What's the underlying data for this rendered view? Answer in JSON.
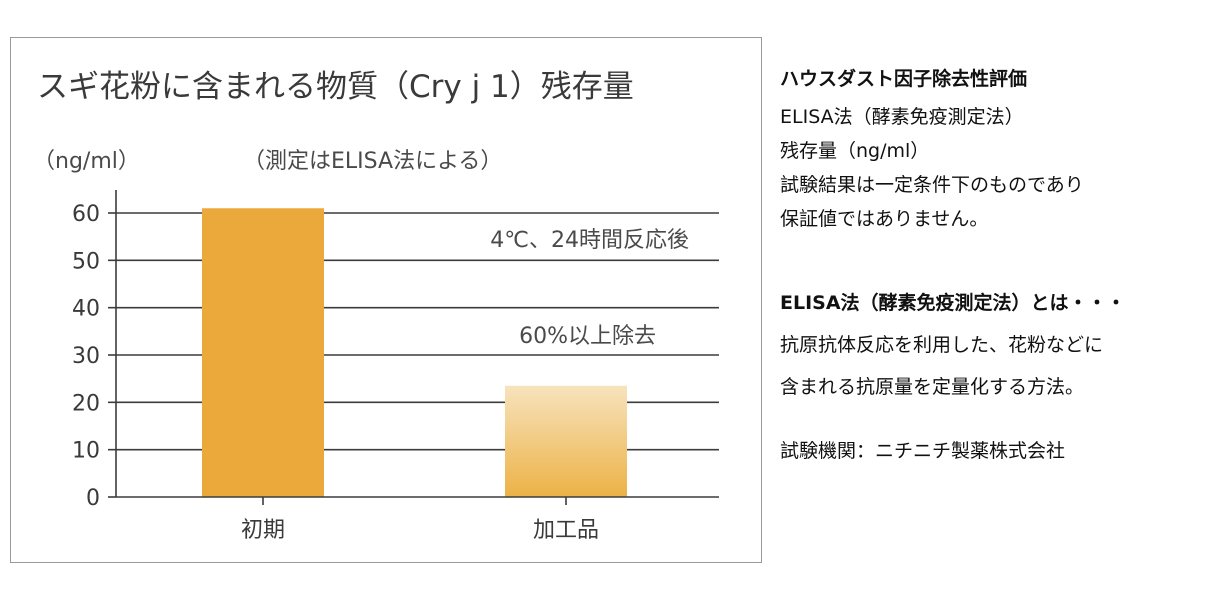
{
  "chart_data": {
    "type": "bar",
    "title": "スギ花粉に含まれる物質（Cry j 1）残存量",
    "unit_label": "（ng/ml）",
    "subtitle": "（測定はELISA法による）",
    "categories": [
      "初期",
      "加工品"
    ],
    "values": [
      61,
      23.5
    ],
    "ylim": [
      0,
      60
    ],
    "yticks": [
      "0",
      "10",
      "20",
      "30",
      "40",
      "50",
      "60"
    ],
    "annotations": [
      "4℃、24時間反応後",
      "60%以上除去"
    ],
    "grid": true,
    "colors": {
      "bar_initial": "#eaa93a",
      "bar_processed_top": "#f7e3bd",
      "bar_processed_bottom": "#ecb246",
      "axis": "#3c3c3c",
      "border": "#9a9a9a"
    }
  },
  "info": {
    "heading": "ハウスダスト因子除去性評価",
    "lines": [
      "ELISA法（酵素免疫測定法）",
      "残存量（ng/ml）",
      "試験結果は一定条件下のものであり",
      "保証値ではありません。"
    ],
    "definition_heading": "ELISA法（酵素免疫測定法）とは・・・",
    "definition_lines": [
      "抗原抗体反応を利用した、花粉などに",
      "含まれる抗原量を定量化する方法。"
    ],
    "lab": "試験機関：ニチニチ製薬株式会社"
  }
}
